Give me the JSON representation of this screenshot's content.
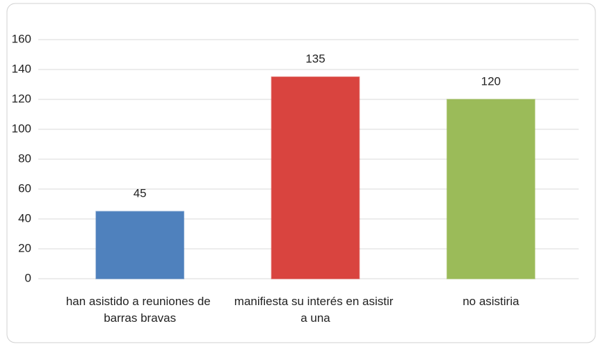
{
  "chart_data": {
    "type": "bar",
    "categories": [
      "han asistido a reuniones de barras bravas",
      "manifiesta su interés en asistir a una",
      "no asistiria"
    ],
    "values": [
      45,
      135,
      120
    ],
    "colors": [
      "#4f81bd",
      "#d9443f",
      "#9bbb59"
    ],
    "ylim": [
      0,
      160
    ],
    "yticks": [
      0,
      20,
      40,
      60,
      80,
      100,
      120,
      140,
      160
    ],
    "grid": true
  }
}
